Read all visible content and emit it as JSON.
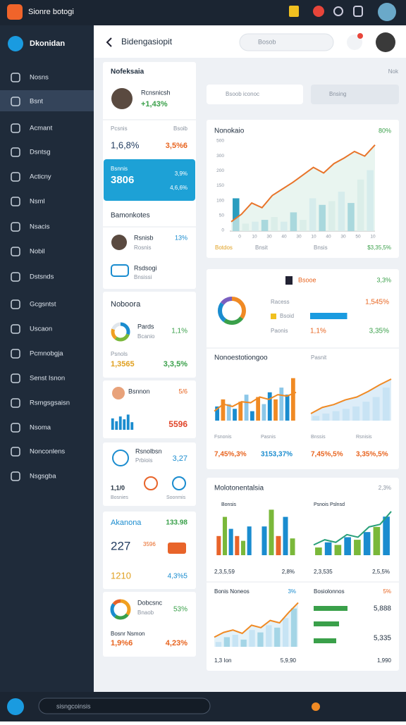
{
  "topbar": {
    "title": "Sionre botogi"
  },
  "sidebar": {
    "title": "Dkonidan",
    "items": [
      "Nosns",
      "Bsnt",
      "Acmant",
      "Dsntsg",
      "Acticny",
      "Nsml",
      "Nsacis",
      "Nobil",
      "Dstsnds",
      "Gcgsntst",
      "Uscaon",
      "Pcmnobgja",
      "Senst Isnon",
      "Rsmgsgsaisn",
      "Nsoma",
      "Nonconlens",
      "Nsgsgba"
    ]
  },
  "header": {
    "title": "Bidengasiopit",
    "search": "Bosob"
  },
  "left": {
    "profile": {
      "heading": "Nofeksaia",
      "name": "Rcnsnicsh",
      "value": "+1,43%"
    },
    "stats": {
      "label1": "Pcsnis",
      "label2": "Bsoib",
      "value1": "1,6,8%",
      "value2": "3,5%6"
    },
    "highlight": {
      "label": "Bsnnis",
      "value": "3806",
      "sub1": "3,9%",
      "sub2": "4,6,6%"
    },
    "contacts": {
      "heading": "Bamonkotes",
      "items": [
        {
          "name": "Rsnisb",
          "sub": "Rosnis",
          "value": "13%"
        },
        {
          "name": "Rsdsogi",
          "sub": "Bnsissi"
        }
      ]
    },
    "nobooro": {
      "heading": "Noboora",
      "donut_label": "Pards",
      "donut_sub": "Bcanio",
      "donut_value": "1,1%",
      "row_label": "Psnols",
      "v1": "1,3565",
      "v2": "3,3,5%"
    },
    "bars_card": {
      "label": "Bsnnon",
      "value": "5/6",
      "big": "5596"
    },
    "icons_card": {
      "label": "Rsnolbsn",
      "sub": "Prbiois",
      "value": "3,27",
      "a": "1,1/0",
      "b": "Bosnies",
      "c": "Soonmis"
    },
    "alerts": {
      "heading": "Akanona",
      "value": "133.98",
      "big": "227",
      "sub": "3596",
      "v2": "1210",
      "v3": "4,3%5"
    },
    "bottom": {
      "label": "Dobcsnc",
      "sub": "Bnaob",
      "value": "53%",
      "label2": "Bosnr Nsmon",
      "v1": "1,9%6",
      "v2": "4,23%"
    }
  },
  "right": {
    "corner": "Nok",
    "search1": "Bsoob iconoc",
    "search2": "Bnsing",
    "card1": {
      "title": "Nonokaio",
      "value": "80%",
      "axis_labels": [
        "500",
        "300",
        "200",
        "150",
        "100",
        "50",
        "0"
      ],
      "x_labels": [
        "0",
        "10",
        "30",
        "40",
        "30",
        "10",
        "40",
        "30",
        "50",
        "10"
      ],
      "footer": [
        "Botdos",
        "Bnsit",
        "Bnsis"
      ],
      "footer_value": "$3,35,5%"
    },
    "card2": {
      "title": "Bsooe",
      "value": "3,3%",
      "r1": "Racess",
      "r1v": "1,545%",
      "r2": "Bsoid",
      "r3": "Paonis",
      "r3v": "1,1%",
      "r3w": "3,35%",
      "section": "Nonoestotiongoo",
      "section_right": "Pasnit",
      "labels": [
        "Fsnonis",
        "Pasnis",
        "Bnssis",
        "Rsnisis"
      ],
      "values": [
        "7,45%,3%",
        "3153,37%",
        "7,45%,5%",
        "3,35%,5%"
      ]
    },
    "card3": {
      "title": "Molotonentalsia",
      "value": "2,3%",
      "sub1": "Bonsis",
      "sub2": "Psnois Pslnsd",
      "row": [
        "2,3,5,59",
        "2,8%",
        "2,3,535",
        "2,5,5%"
      ],
      "b1": "Bonis Noneos",
      "b1v": "3%",
      "b2": "Bosiolonnos",
      "b2v": "5%",
      "p1": "5,888",
      "p2": "5,335",
      "f1": "1,3 Ion",
      "f2": "5,9,90",
      "f3": "1,990"
    }
  },
  "bottombar": {
    "search": "sisngcoinsis"
  },
  "charts": {
    "trend": {
      "ylim": [
        0,
        100
      ],
      "bars": [
        35,
        8,
        10,
        12,
        15,
        10,
        20,
        12,
        35,
        28,
        32,
        42,
        30,
        55,
        65
      ],
      "colors": [
        "#2a9dbf",
        "#cfe8e6",
        "#bfdff0"
      ],
      "line": [
        10,
        18,
        30,
        25,
        38,
        45,
        52,
        60,
        68,
        62,
        72,
        78,
        85,
        80,
        92
      ],
      "line_color": "#e8742a",
      "area": "#dff1ea"
    },
    "donut1": {
      "values": [
        35,
        25,
        25,
        15
      ],
      "colors": [
        "#f08a24",
        "#3aa04a",
        "#1a8ccf",
        "#7a5fc0"
      ]
    },
    "mix": {
      "ylim": [
        0,
        100
      ],
      "bars": [
        30,
        45,
        35,
        25,
        40,
        55,
        20,
        50,
        35,
        60,
        45,
        70,
        55,
        90
      ],
      "colors": [
        "#1a8ccf",
        "#f08a24",
        "#8cc7e8"
      ],
      "line": [
        20,
        35,
        30,
        40,
        38,
        50,
        45,
        55,
        52,
        60
      ],
      "line_color": "#f08a24"
    },
    "area2": {
      "ylim": [
        0,
        100
      ],
      "line": [
        15,
        28,
        34,
        44,
        50,
        62,
        76,
        88
      ],
      "line_color": "#f08a24",
      "area": "#cfe6f5",
      "bars": [
        10,
        15,
        20,
        25,
        30,
        40,
        50,
        70
      ],
      "colors": [
        "#b9dcf2"
      ]
    },
    "cbars1": {
      "ylim": [
        0,
        100
      ],
      "bars": [
        40,
        80,
        55,
        40,
        30,
        60
      ],
      "colors": [
        "#e8642a",
        "#7ab83a",
        "#1a8ccf"
      ]
    },
    "cbars2": {
      "ylim": [
        0,
        100
      ],
      "bars": [
        60,
        95,
        40,
        80,
        35
      ],
      "colors": [
        "#1a8ccf",
        "#7ab83a",
        "#e8642a"
      ]
    },
    "line3": {
      "ylim": [
        0,
        100
      ],
      "line": [
        20,
        30,
        25,
        40,
        35,
        55,
        60,
        85
      ],
      "line_color": "#2aa07a",
      "bars": [
        15,
        25,
        20,
        35,
        30,
        45,
        55,
        75
      ],
      "colors": [
        "#7ab83a",
        "#1a8ccf"
      ]
    },
    "area4": {
      "ylim": [
        0,
        100
      ],
      "line": [
        20,
        30,
        35,
        28,
        45,
        40,
        55,
        50,
        72,
        92
      ],
      "line_color": "#f08a24",
      "area": "#d9ecf7",
      "bars": [
        10,
        20,
        25,
        15,
        35,
        30,
        45,
        40,
        60,
        80
      ],
      "colors": [
        "#9fd0ee",
        "#2a9dbf"
      ]
    },
    "progress": {
      "values": [
        60,
        45,
        40
      ],
      "max": 100,
      "colors": [
        "#3aa04a",
        "#3aa04a",
        "#3aa04a"
      ]
    },
    "minibars": {
      "ylim": [
        0,
        100
      ],
      "bars": [
        60,
        45,
        70,
        55,
        80,
        40
      ],
      "colors": [
        "#1a8ccf"
      ]
    },
    "donut2": {
      "values": [
        30,
        30,
        20,
        20
      ],
      "colors": [
        "#1a8ccf",
        "#7ab83a",
        "#f0a020",
        "#e0e6ec"
      ]
    },
    "donut3": {
      "values": [
        35,
        25,
        25,
        15
      ],
      "colors": [
        "#f0a020",
        "#3aa04a",
        "#1a8ccf",
        "#e8642a"
      ]
    },
    "hbar1": {
      "values": [
        70
      ],
      "max": 100,
      "colors": [
        "#1a9be0"
      ]
    }
  }
}
